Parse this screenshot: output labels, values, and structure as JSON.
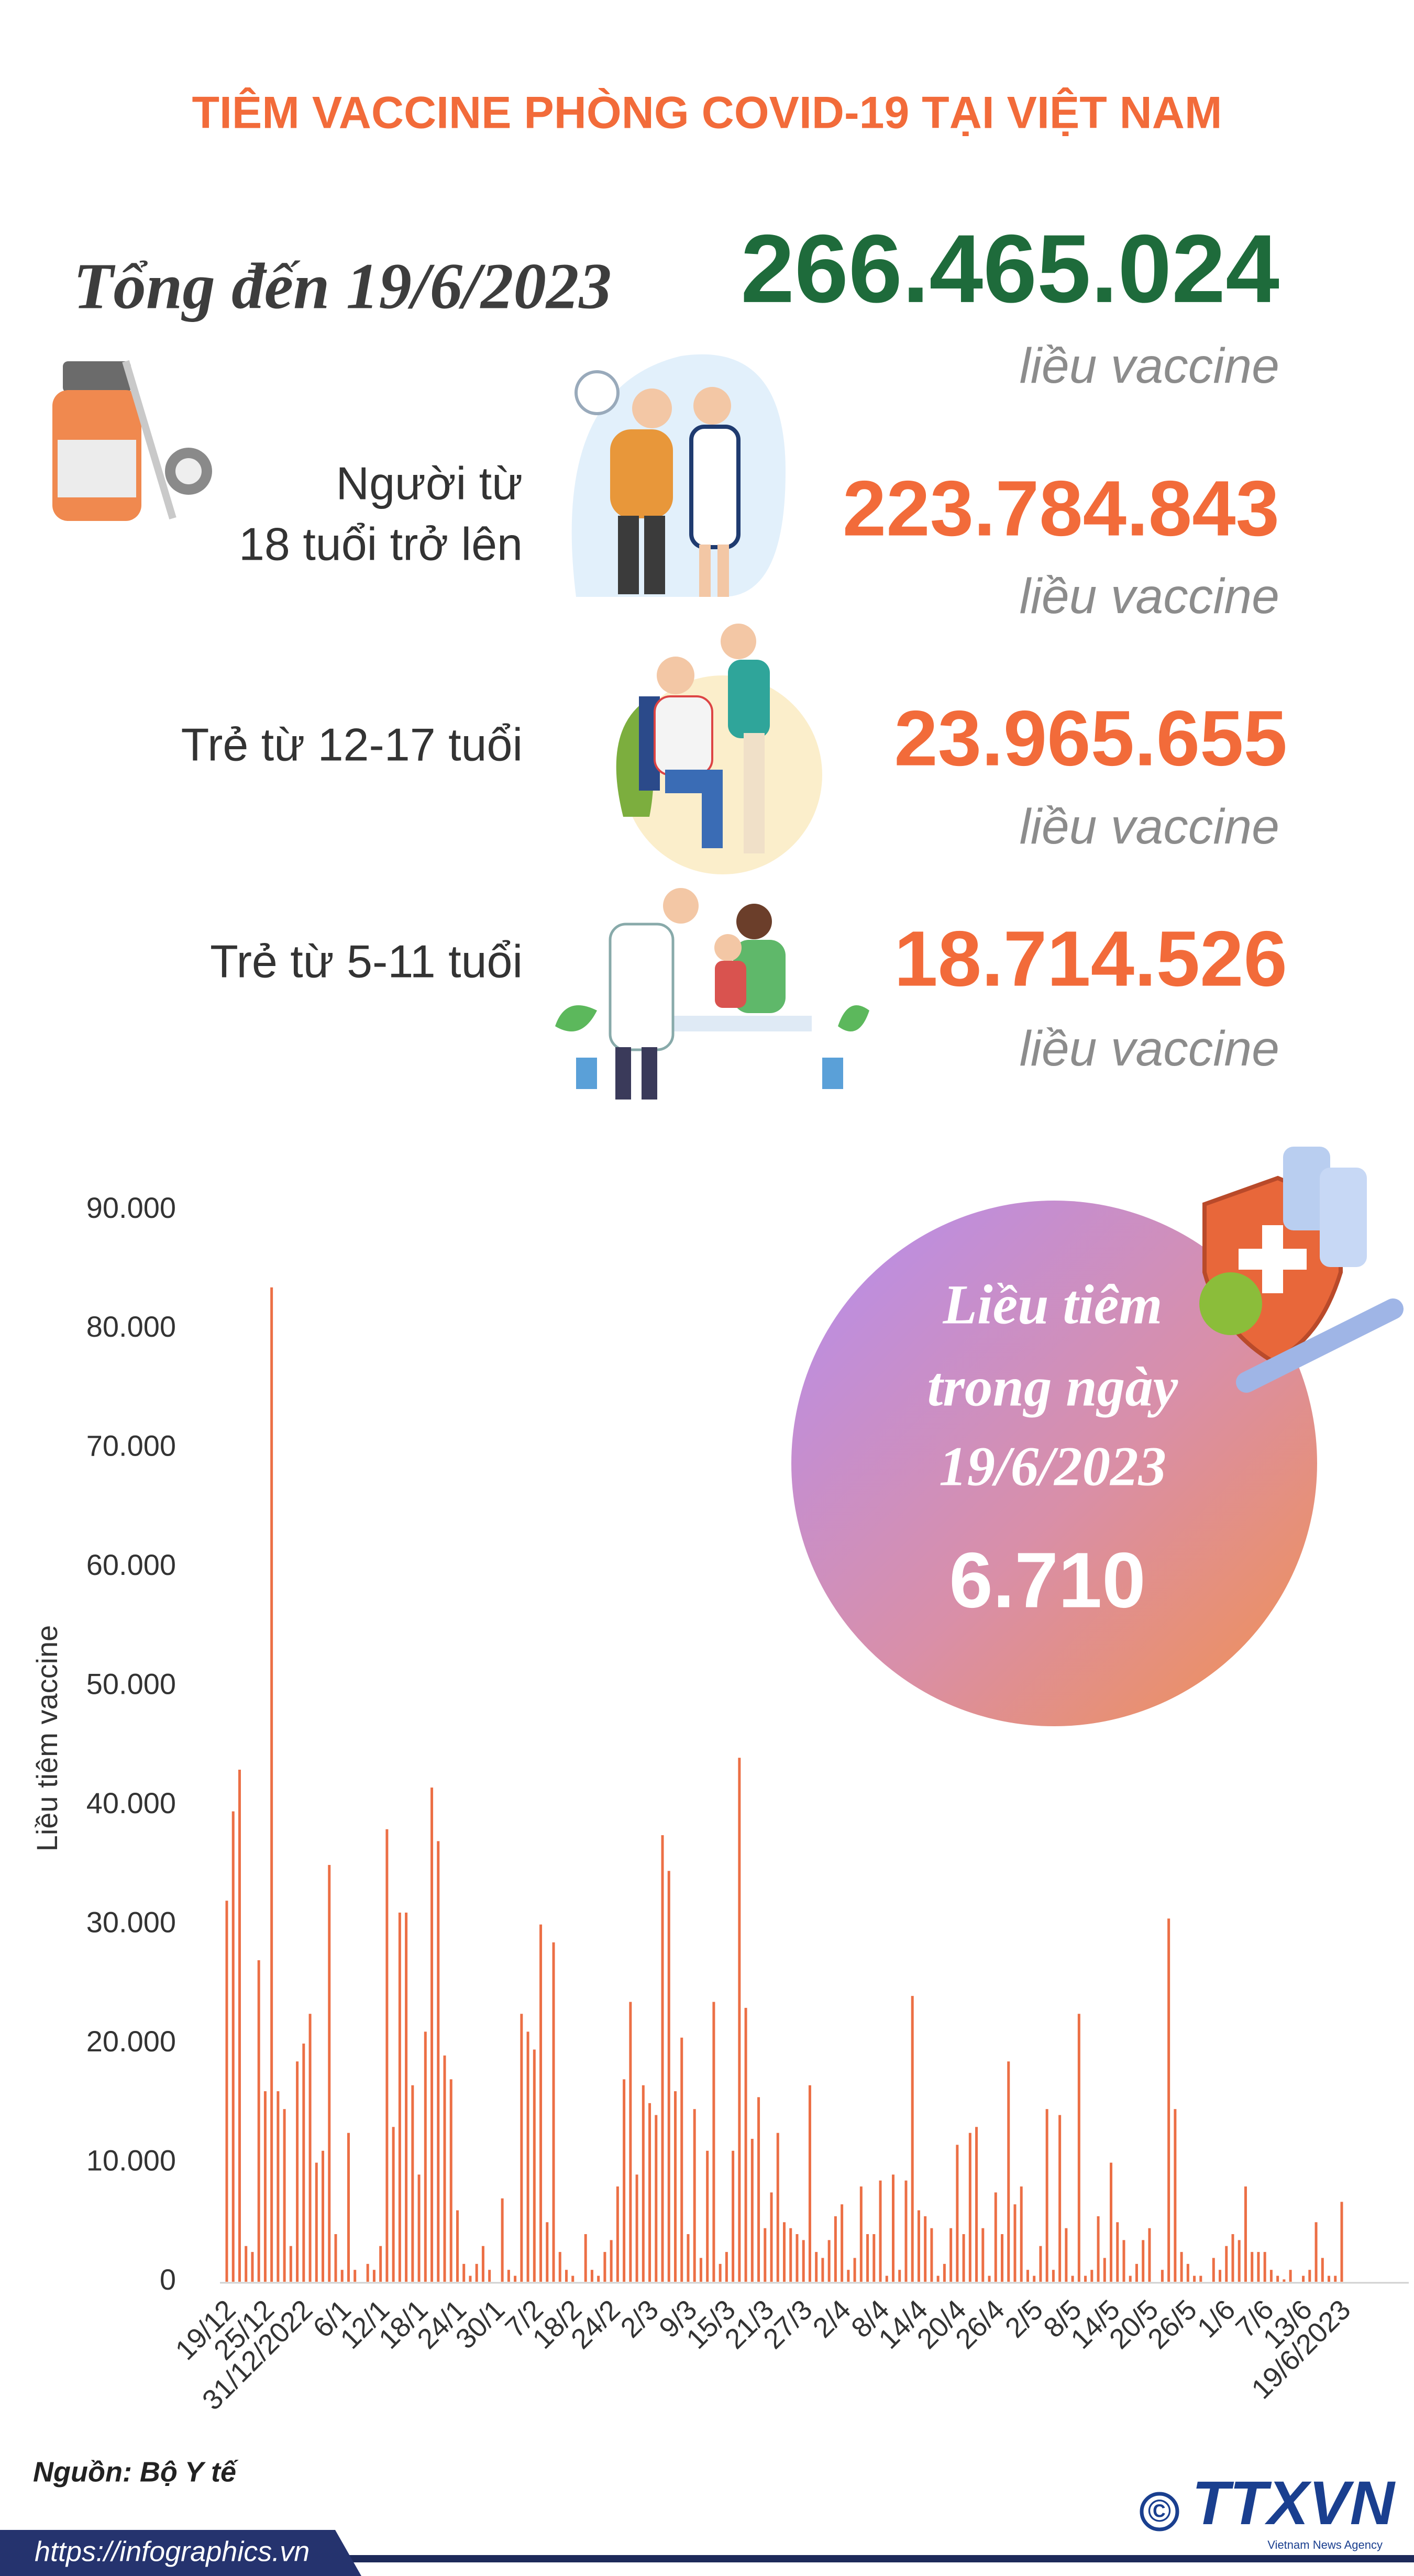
{
  "header": {
    "title": "TIÊM VACCINE PHÒNG COVID-19 TẠI VIỆT NAM"
  },
  "summary": {
    "total_label": "Tổng đến 19/6/2023",
    "total_value": "266.465.024",
    "unit": "liều vaccine",
    "groups": [
      {
        "label_lines": [
          "Người từ",
          "18 tuổi trở lên"
        ],
        "value": "223.784.843",
        "unit": "liều vaccine"
      },
      {
        "label_lines": [
          "Trẻ từ 12-17 tuổi"
        ],
        "value": "23.965.655",
        "unit": "liều vaccine"
      },
      {
        "label_lines": [
          "Trẻ từ 5-11 tuổi"
        ],
        "value": "18.714.526",
        "unit": "liều vaccine"
      }
    ]
  },
  "chart_data": {
    "type": "bar",
    "y_label": "Liều tiêm vaccine",
    "color": "#ec6f45",
    "grid": false,
    "ylim": [
      0,
      90000
    ],
    "yticks": [
      0,
      {
        "value": 10000,
        "label": "10.000"
      },
      {
        "value": 20000,
        "label": "20.000"
      },
      {
        "value": 30000,
        "label": "30.000"
      },
      {
        "value": 40000,
        "label": "40.000"
      },
      {
        "value": 50000,
        "label": "50.000"
      },
      {
        "value": 60000,
        "label": "60.000"
      },
      {
        "value": 70000,
        "label": "70.000"
      },
      {
        "value": 80000,
        "label": "80.000"
      },
      {
        "value": 90000,
        "label": "90.000"
      }
    ],
    "categories": [
      "19/12",
      null,
      null,
      null,
      null,
      null,
      "25/12",
      null,
      null,
      null,
      null,
      null,
      "31/12/2022",
      null,
      null,
      null,
      null,
      null,
      "6/1",
      null,
      null,
      null,
      null,
      null,
      "12/1",
      null,
      null,
      null,
      null,
      null,
      "18/1",
      null,
      null,
      null,
      null,
      null,
      "24/1",
      null,
      null,
      null,
      null,
      null,
      "30/1",
      null,
      null,
      null,
      null,
      null,
      "7/2",
      null,
      null,
      null,
      null,
      null,
      "18/2",
      null,
      null,
      null,
      null,
      null,
      "24/2",
      null,
      null,
      null,
      null,
      null,
      "2/3",
      null,
      null,
      null,
      null,
      null,
      "9/3",
      null,
      null,
      null,
      null,
      null,
      "15/3",
      null,
      null,
      null,
      null,
      null,
      "21/3",
      null,
      null,
      null,
      null,
      null,
      "27/3",
      null,
      null,
      null,
      null,
      null,
      "2/4",
      null,
      null,
      null,
      null,
      null,
      "8/4",
      null,
      null,
      null,
      null,
      null,
      "14/4",
      null,
      null,
      null,
      null,
      null,
      "20/4",
      null,
      null,
      null,
      null,
      null,
      "26/4",
      null,
      null,
      null,
      null,
      null,
      "2/5",
      null,
      null,
      null,
      null,
      null,
      "8/5",
      null,
      null,
      null,
      null,
      null,
      "14/5",
      null,
      null,
      null,
      null,
      null,
      "20/5",
      null,
      null,
      null,
      null,
      null,
      "26/5",
      null,
      null,
      null,
      null,
      null,
      "1/6",
      null,
      null,
      null,
      null,
      null,
      "7/6",
      null,
      null,
      null,
      null,
      null,
      "13/6",
      null,
      null,
      null,
      null,
      null,
      "19/6/2023"
    ],
    "values": [
      32000,
      39500,
      43000,
      3000,
      2500,
      27000,
      16000,
      83500,
      16000,
      14500,
      3000,
      18500,
      20000,
      22500,
      10000,
      11000,
      35000,
      4000,
      1000,
      12500,
      1000,
      0,
      1500,
      1000,
      3000,
      38000,
      13000,
      31000,
      31000,
      16500,
      9000,
      21000,
      41500,
      37000,
      19000,
      17000,
      6000,
      1500,
      500,
      1500,
      3000,
      1000,
      0,
      7000,
      1000,
      500,
      22500,
      21000,
      19500,
      30000,
      5000,
      28500,
      2500,
      1000,
      500,
      0,
      4000,
      1000,
      500,
      2500,
      3500,
      8000,
      17000,
      23500,
      9000,
      16500,
      15000,
      14000,
      37500,
      34500,
      16000,
      20500,
      4000,
      14500,
      2000,
      11000,
      23500,
      1500,
      2500,
      11000,
      44000,
      23000,
      12000,
      15500,
      4500,
      7500,
      12500,
      5000,
      4500,
      4000,
      3500,
      16500,
      2500,
      2000,
      3500,
      5500,
      6500,
      1000,
      2000,
      8000,
      4000,
      4000,
      8500,
      500,
      9000,
      1000,
      8500,
      24000,
      6000,
      5500,
      4500,
      500,
      1500,
      4500,
      11500,
      4000,
      12500,
      13000,
      4500,
      500,
      7500,
      4000,
      18500,
      6500,
      8000,
      1000,
      500,
      3000,
      14500,
      1000,
      14000,
      4500,
      500,
      22500,
      500,
      1000,
      5500,
      2000,
      10000,
      5000,
      3500,
      500,
      1500,
      3500,
      4500,
      0,
      1000,
      30500,
      14500,
      2500,
      1500,
      500,
      500,
      0,
      2000,
      1000,
      3000,
      4000,
      3500,
      8000,
      2500,
      2500,
      2500,
      1000,
      500,
      200,
      1000,
      0,
      500,
      1000,
      5000,
      2000,
      500,
      500,
      6710
    ]
  },
  "callout": {
    "lines": [
      "Liều tiêm",
      "trong ngày",
      "19/6/2023"
    ],
    "value": "6.710"
  },
  "footer": {
    "source": "Nguồn: Bộ Y tế",
    "url": "https://infographics.vn",
    "copyright": "©",
    "logo": "TTXVN",
    "logo_sub": "Vietnam News Agency"
  }
}
